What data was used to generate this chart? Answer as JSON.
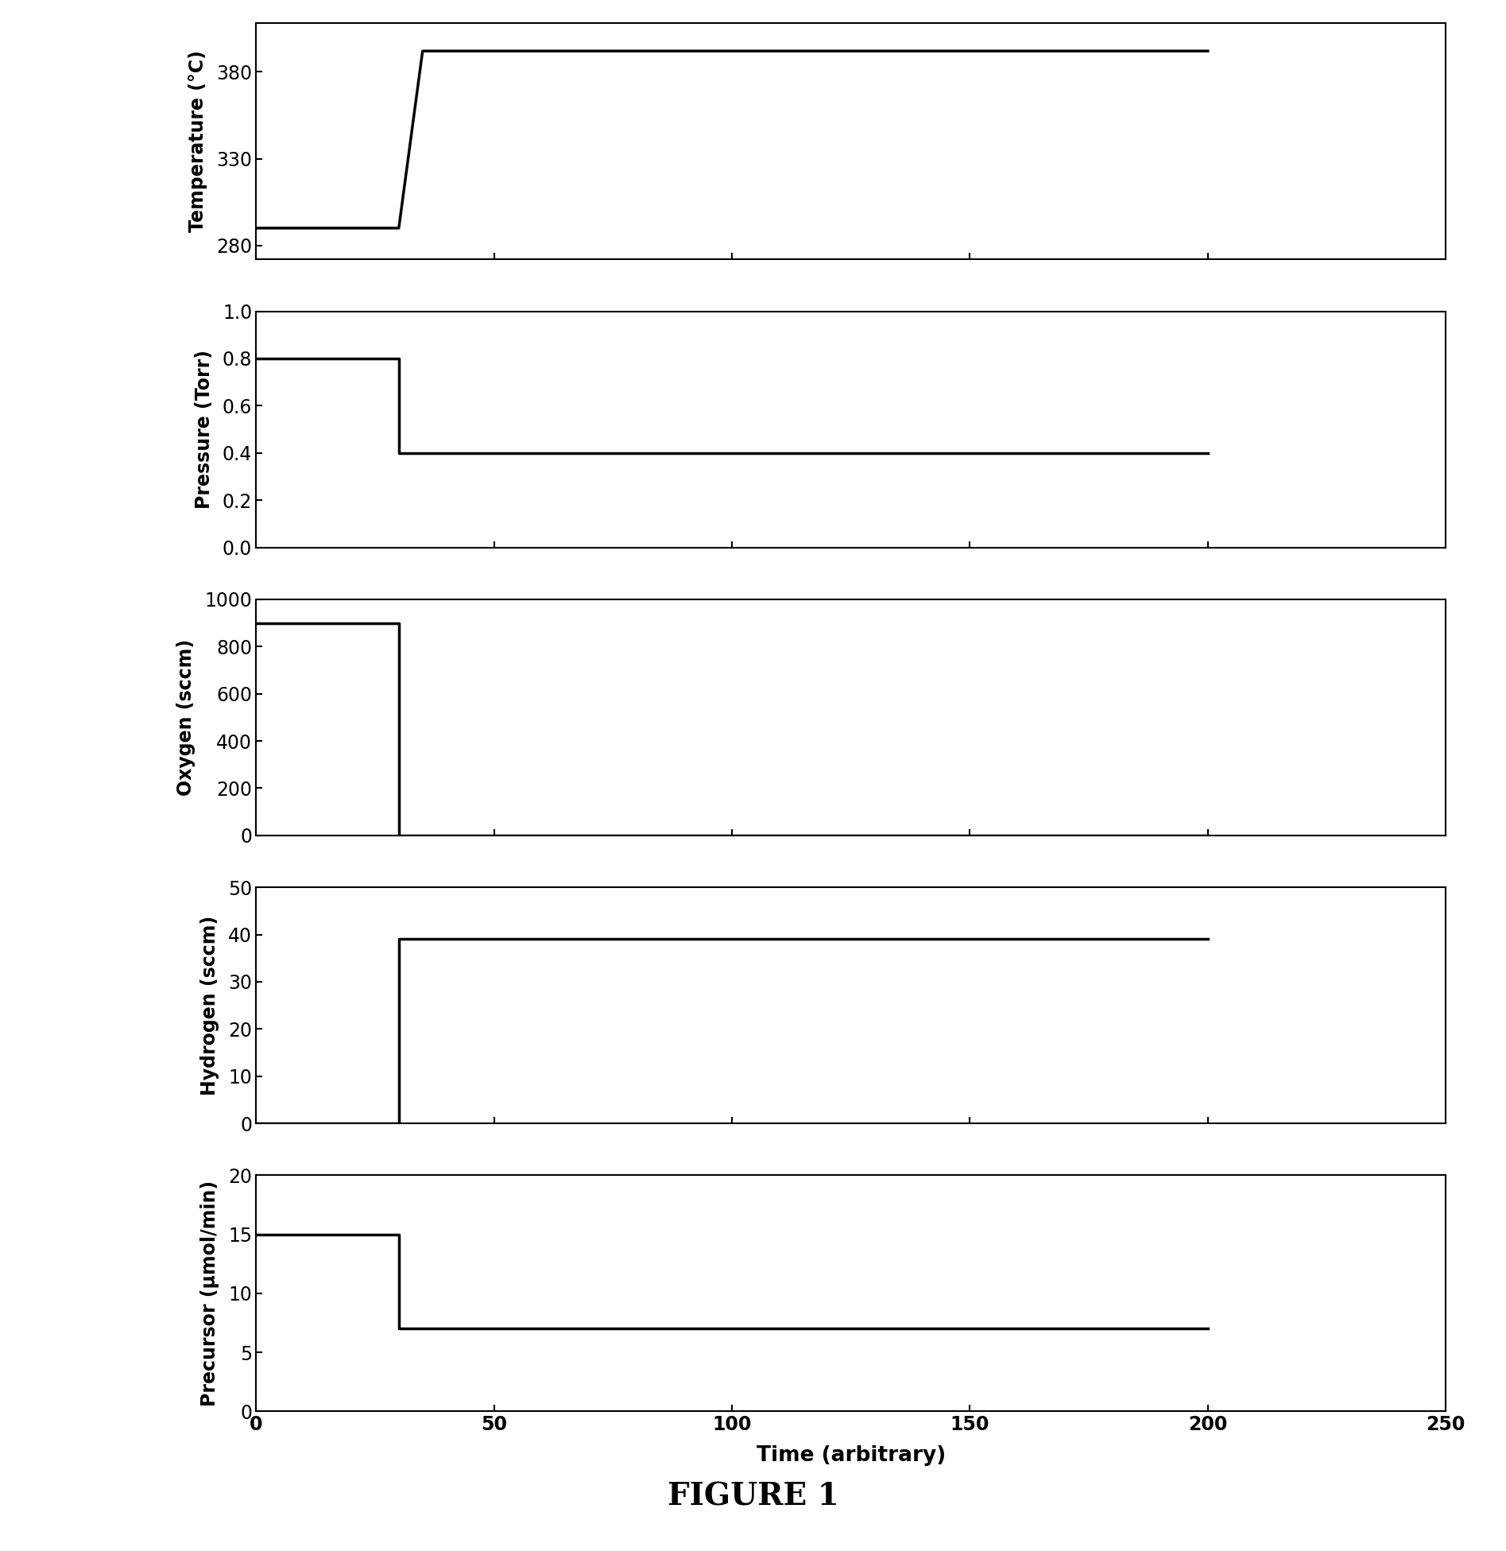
{
  "title": "FIGURE 1",
  "xlabel": "Time (arbitrary)",
  "xlim": [
    0,
    250
  ],
  "xticks": [
    0,
    50,
    100,
    150,
    200,
    250
  ],
  "panels": [
    {
      "ylabel": "Temperature (°C)",
      "ylim": [
        272,
        408
      ],
      "yticks": [
        280,
        330,
        380
      ],
      "x": [
        0,
        30,
        35,
        200
      ],
      "y": [
        290,
        290,
        392,
        392
      ]
    },
    {
      "ylabel": "Pressure (Torr)",
      "ylim": [
        0,
        1.0
      ],
      "yticks": [
        0,
        0.2,
        0.4,
        0.6,
        0.8,
        1
      ],
      "x": [
        0,
        30,
        30,
        200
      ],
      "y": [
        0.8,
        0.8,
        0.4,
        0.4
      ]
    },
    {
      "ylabel": "Oxygen (sccm)",
      "ylim": [
        0,
        1000
      ],
      "yticks": [
        0,
        200,
        400,
        600,
        800,
        1000
      ],
      "x": [
        0,
        30,
        30,
        200
      ],
      "y": [
        900,
        900,
        0,
        0
      ]
    },
    {
      "ylabel": "Hydrogen (sccm)",
      "ylim": [
        0,
        50
      ],
      "yticks": [
        0,
        10,
        20,
        30,
        40,
        50
      ],
      "x": [
        0,
        30,
        30,
        200
      ],
      "y": [
        0,
        0,
        39,
        39
      ]
    },
    {
      "ylabel": "Precursor (μmol/min)",
      "ylim": [
        0,
        20
      ],
      "yticks": [
        0,
        5,
        10,
        15,
        20
      ],
      "x": [
        0,
        30,
        30,
        200
      ],
      "y": [
        15,
        15,
        7,
        7
      ]
    }
  ],
  "line_color": "black",
  "line_width": 2.5,
  "background_color": "white",
  "figure_width": 18.95,
  "figure_height": 19.51,
  "dpi": 100,
  "tick_fontsize": 17,
  "ylabel_fontsize": 17,
  "xlabel_fontsize": 19,
  "title_fontsize": 28
}
